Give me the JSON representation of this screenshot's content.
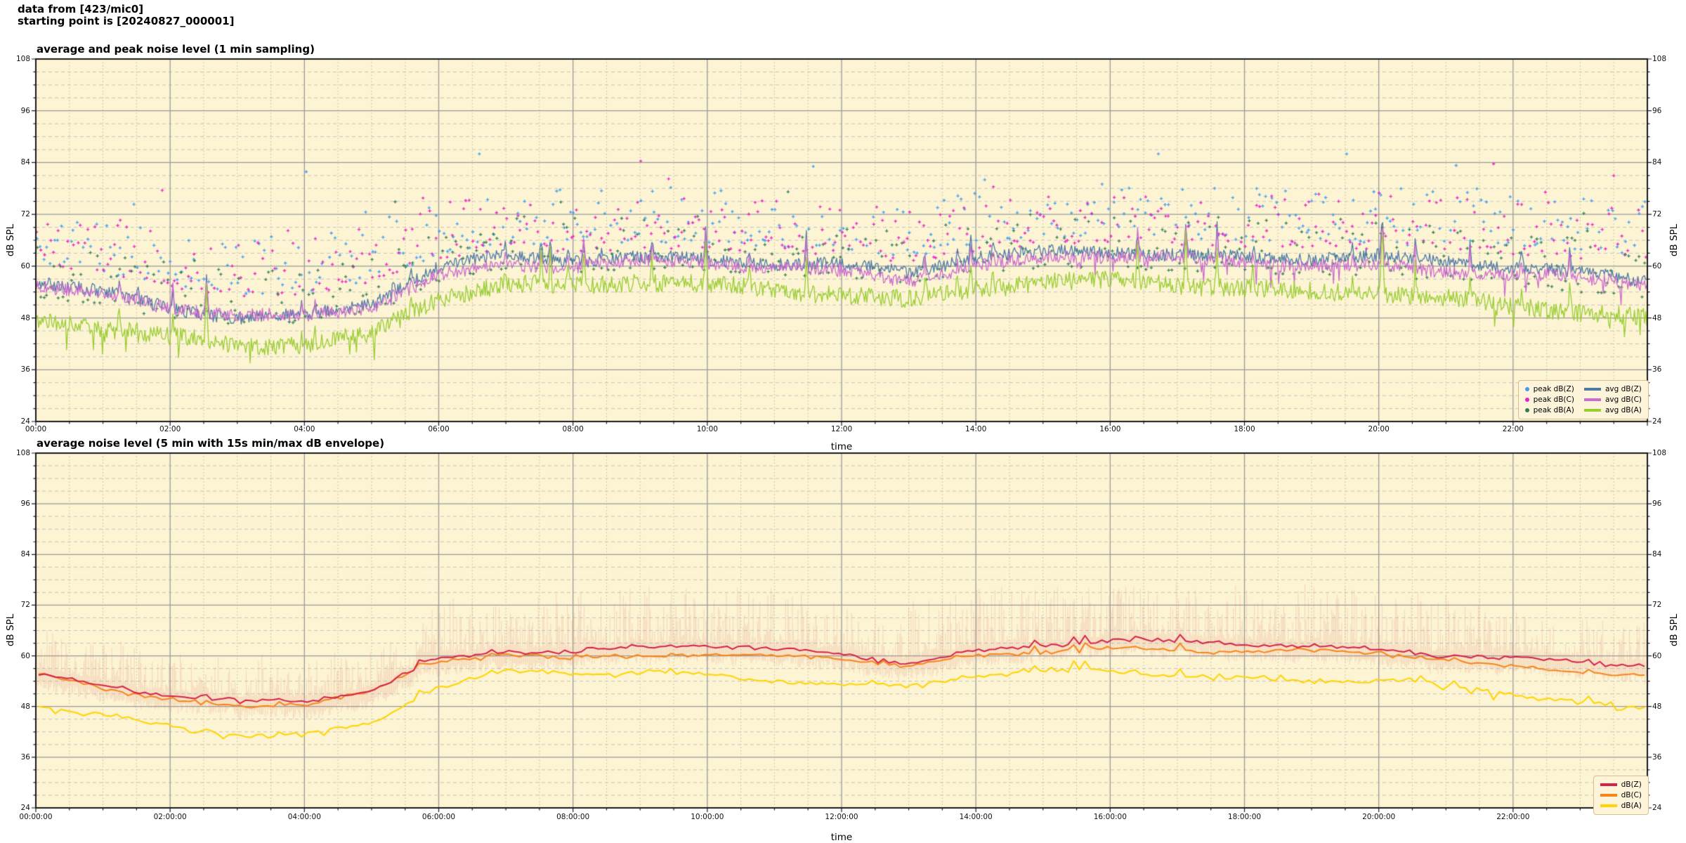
{
  "header": {
    "line1": "data from [423/mic0]",
    "line2": "starting point is [20240827_000001]"
  },
  "colors": {
    "page_background": "#ffffff",
    "plot_background": "#FCF4D3",
    "axis_border": "#1a1a1a",
    "grid_major": "#9B9B9B",
    "grid_minor_dashed": "#C4C4C4",
    "grid_minor_dotted": "#C2BC9E",
    "legend_background": "#FDF4D9",
    "legend_border": "#D9BE8F",
    "envelope": "#DD6F66"
  },
  "chart_data": [
    {
      "type": "line+scatter",
      "title": "average and peak noise level (1 min sampling)",
      "xlabel": "time",
      "ylabel": "dB SPL",
      "sampling": "1 min",
      "ylim": [
        24,
        108
      ],
      "xlim_hours": [
        0,
        24
      ],
      "y_tick_values": [
        108,
        96,
        84,
        72,
        60,
        48,
        36,
        24
      ],
      "y_tick_labels": [
        "108",
        "96",
        "84",
        "72",
        "60",
        "48",
        "36",
        "24"
      ],
      "y_minor_step_db": 3,
      "x_tick_step_hours": 2,
      "x_minor_step_hours": 0.5,
      "x_tick_labels": [
        "00:00",
        "02:00",
        "04:00",
        "06:00",
        "08:00",
        "10:00",
        "12:00",
        "14:00",
        "16:00",
        "18:00",
        "20:00",
        "22:00"
      ],
      "hours": [
        0,
        1,
        2,
        3,
        4,
        5,
        6,
        7,
        8,
        9,
        10,
        11,
        12,
        13,
        14,
        15,
        16,
        17,
        18,
        19,
        20,
        21,
        22,
        23,
        24
      ],
      "series": [
        {
          "name": "avg dB(Z)",
          "color": "#4E79A7",
          "profile_db": [
            56,
            53.5,
            50.5,
            48.5,
            49,
            51.5,
            59.5,
            62,
            61,
            62,
            62,
            61,
            60.5,
            58.5,
            61.5,
            63,
            63.5,
            63,
            62.5,
            62,
            62,
            60.5,
            59.5,
            58.5,
            57
          ]
        },
        {
          "name": "avg dB(C)",
          "color": "#CE6BD0",
          "profile_db": [
            55.5,
            53,
            50,
            48,
            48.5,
            51,
            58.2,
            60.6,
            59.6,
            60.6,
            60.6,
            59.6,
            59.2,
            57.2,
            60,
            61.5,
            62,
            61.5,
            61,
            60.5,
            60.5,
            59,
            57.8,
            56.8,
            55.5
          ]
        },
        {
          "name": "avg dB(A)",
          "color": "#9ACD32",
          "profile_db": [
            48,
            45.5,
            43,
            41.5,
            42,
            44.5,
            53,
            56,
            55,
            56,
            55.5,
            54.5,
            54,
            52.5,
            55,
            56,
            56,
            55.5,
            55,
            54.5,
            54.5,
            52.5,
            50.5,
            49,
            47.5
          ]
        }
      ],
      "scatter": [
        {
          "name": "peak dB(Z)",
          "color": "#3E9DF3",
          "follows": 0
        },
        {
          "name": "peak dB(C)",
          "color": "#EC1FC8",
          "follows": 1
        },
        {
          "name": "peak dB(A)",
          "color": "#337D53",
          "follows": 2
        }
      ],
      "render": {
        "seed": 42301,
        "line_noise_db": [
          1.5,
          1.5,
          2.1
        ],
        "event_prob": 0.022,
        "event_amp_db": [
          2,
          10
        ],
        "event_scale": [
          1.0,
          1.05,
          1.5
        ],
        "scatter_interval_min": 3,
        "scatter_offset_db": [
          3.5,
          13
        ],
        "scatter_outlier_max_db": 86
      }
    },
    {
      "type": "line+envelope",
      "title": "average noise level (5 min with 15s min/max dB envelope)",
      "xlabel": "time",
      "ylabel": "dB SPL",
      "sampling": "5 min",
      "ylim": [
        24,
        108
      ],
      "xlim_hours": [
        0,
        24
      ],
      "y_tick_values": [
        108,
        96,
        84,
        72,
        60,
        48,
        36,
        24
      ],
      "y_tick_labels": [
        "108",
        "96",
        "84",
        "72",
        "60",
        "48",
        "36",
        "24"
      ],
      "y_minor_step_db": 3,
      "x_tick_step_hours": 2,
      "x_minor_step_hours": 0.5,
      "x_tick_labels": [
        "00:00:00",
        "02:00:00",
        "04:00:00",
        "06:00:00",
        "08:00:00",
        "10:00:00",
        "12:00:00",
        "14:00:00",
        "16:00:00",
        "18:00:00",
        "20:00:00",
        "22:00:00"
      ],
      "hours": [
        0,
        1,
        2,
        3,
        4,
        5,
        6,
        7,
        8,
        9,
        10,
        11,
        12,
        13,
        14,
        15,
        16,
        17,
        18,
        19,
        20,
        21,
        22,
        23,
        24
      ],
      "series": [
        {
          "name": "dB(Z)",
          "color": "#D5234B",
          "profile_db": [
            56,
            53.5,
            50.5,
            48.5,
            49,
            51.5,
            59.5,
            62,
            61,
            62,
            62,
            61,
            60.5,
            58.5,
            61.5,
            63,
            63.5,
            63,
            62.5,
            62,
            62,
            60.5,
            59.5,
            58.5,
            57
          ]
        },
        {
          "name": "dB(C)",
          "color": "#F5861B",
          "profile_db": [
            55.5,
            53,
            50,
            48,
            48.5,
            51,
            58.2,
            60.6,
            59.6,
            60.6,
            60.6,
            59.6,
            59.2,
            57.2,
            60,
            61.5,
            62,
            61.5,
            61,
            60.5,
            60.5,
            59,
            57.8,
            56.8,
            55.5
          ]
        },
        {
          "name": "dB(A)",
          "color": "#FFD400",
          "profile_db": [
            48,
            45.5,
            43,
            41.5,
            42,
            44.5,
            53,
            56,
            55,
            56,
            55.5,
            54.5,
            54,
            52.5,
            55,
            56,
            56,
            55.5,
            55,
            54.5,
            54.5,
            52.5,
            50.5,
            49,
            47.5
          ]
        }
      ],
      "envelope": {
        "color": "#DD6F66",
        "applies_to": "dB(Z)",
        "above_db_day": 13.5,
        "above_db_night": 9.5,
        "below_db": 4
      },
      "render": {
        "seed": 82701,
        "line_noise_db": [
          1.0,
          1.0,
          1.1
        ],
        "event_prob": 0.022,
        "event_amp_db": [
          2,
          10
        ],
        "event_scale": [
          0.5,
          0.5,
          0.6
        ],
        "average_minutes": 5
      }
    }
  ]
}
